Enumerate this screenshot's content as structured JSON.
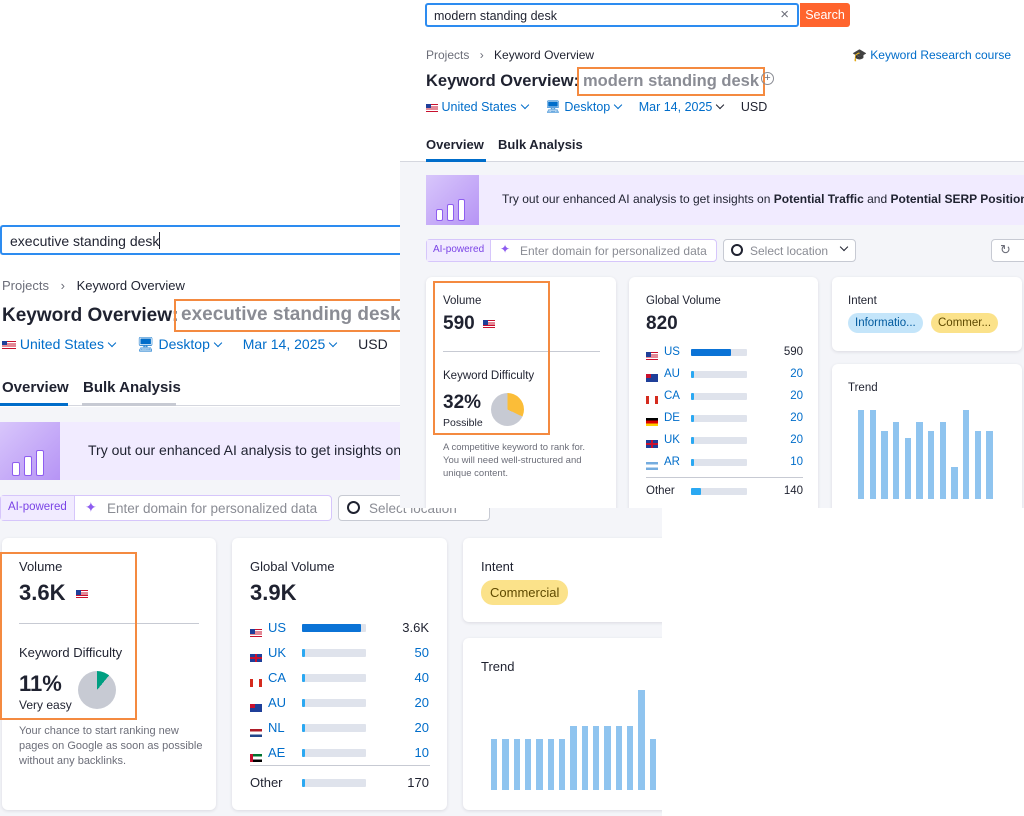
{
  "back": {
    "search_value": "executive standing desk",
    "breadcrumb": [
      "Projects",
      "Keyword Overview"
    ],
    "title_prefix": "Keyword Overview:",
    "keyword": "executive standing desk",
    "database": "United States",
    "device": "Desktop",
    "date": "Mar 14, 2025",
    "currency": "USD",
    "tabs": [
      "Overview",
      "Bulk Analysis"
    ],
    "banner_text": "Try out our enhanced AI analysis to get insights on",
    "ai_badge": "AI-powered",
    "domain_placeholder": "Enter domain for personalized data",
    "location_placeholder": "Select location",
    "volume_label": "Volume",
    "volume_value": "3.6K",
    "kd_label": "Keyword Difficulty",
    "kd_value": "11%",
    "kd_percent": 11,
    "kd_rating": "Very easy",
    "kd_note": "Your chance to start ranking new pages on Google as soon as possible without any backlinks.",
    "global_label": "Global Volume",
    "global_value": "3.9K",
    "countries": [
      {
        "code": "US",
        "value": "3.6K",
        "share": 0.92
      },
      {
        "code": "UK",
        "value": "50",
        "share": 0.02
      },
      {
        "code": "CA",
        "value": "40",
        "share": 0.02
      },
      {
        "code": "AU",
        "value": "20",
        "share": 0.02
      },
      {
        "code": "NL",
        "value": "20",
        "share": 0.02
      },
      {
        "code": "AE",
        "value": "10",
        "share": 0.02
      }
    ],
    "other_label": "Other",
    "other_value": "170",
    "other_share": 0.03,
    "intent_label": "Intent",
    "intent_badges": [
      "Commercial"
    ],
    "trend_label": "Trend",
    "trend": [
      0.51,
      0.51,
      0.51,
      0.51,
      0.51,
      0.51,
      0.51,
      0.64,
      0.64,
      0.64,
      0.64,
      0.64,
      0.64,
      1.0,
      0.51
    ]
  },
  "front": {
    "search_value": "modern standing desk",
    "search_button": "Search",
    "breadcrumb": [
      "Projects",
      "Keyword Overview"
    ],
    "course_link": "Keyword Research course",
    "title_prefix": "Keyword Overview:",
    "keyword": "modern standing desk",
    "database": "United States",
    "device": "Desktop",
    "date": "Mar 14, 2025",
    "currency": "USD",
    "tabs": [
      "Overview",
      "Bulk Analysis"
    ],
    "banner_text_1": "Try out our enhanced AI analysis to get insights on",
    "banner_bold_1": "Potential Traffic",
    "banner_and": "and",
    "banner_bold_2": "Potential SERP Position",
    "ai_badge": "AI-powered",
    "domain_placeholder": "Enter domain for personalized data",
    "location_placeholder": "Select location",
    "volume_label": "Volume",
    "volume_value": "590",
    "kd_label": "Keyword Difficulty",
    "kd_value": "32%",
    "kd_percent": 32,
    "kd_rating": "Possible",
    "kd_note": "A competitive keyword to rank for. You will need well-structured and unique content.",
    "global_label": "Global Volume",
    "global_value": "820",
    "countries": [
      {
        "code": "US",
        "value": "590",
        "share": 0.72
      },
      {
        "code": "AU",
        "value": "20",
        "share": 0.025
      },
      {
        "code": "CA",
        "value": "20",
        "share": 0.025
      },
      {
        "code": "DE",
        "value": "20",
        "share": 0.025
      },
      {
        "code": "UK",
        "value": "20",
        "share": 0.025
      },
      {
        "code": "AR",
        "value": "10",
        "share": 0.02
      }
    ],
    "other_label": "Other",
    "other_value": "140",
    "other_share": 0.17,
    "intent_label": "Intent",
    "intent_badges": [
      "Informatio...",
      "Commer..."
    ],
    "trend_label": "Trend",
    "trend": [
      1.0,
      1.0,
      0.76,
      0.86,
      0.68,
      0.86,
      0.76,
      0.86,
      0.36,
      1.0,
      0.76,
      0.76
    ]
  },
  "colors": {
    "accent_orange": "#f48a40",
    "search_button": "#ff642d",
    "link_blue": "#006dca",
    "intent_commercial": "#fbe28a",
    "intent_informational": "#c4e5fa",
    "trend_bar": "#8fc4ef"
  }
}
